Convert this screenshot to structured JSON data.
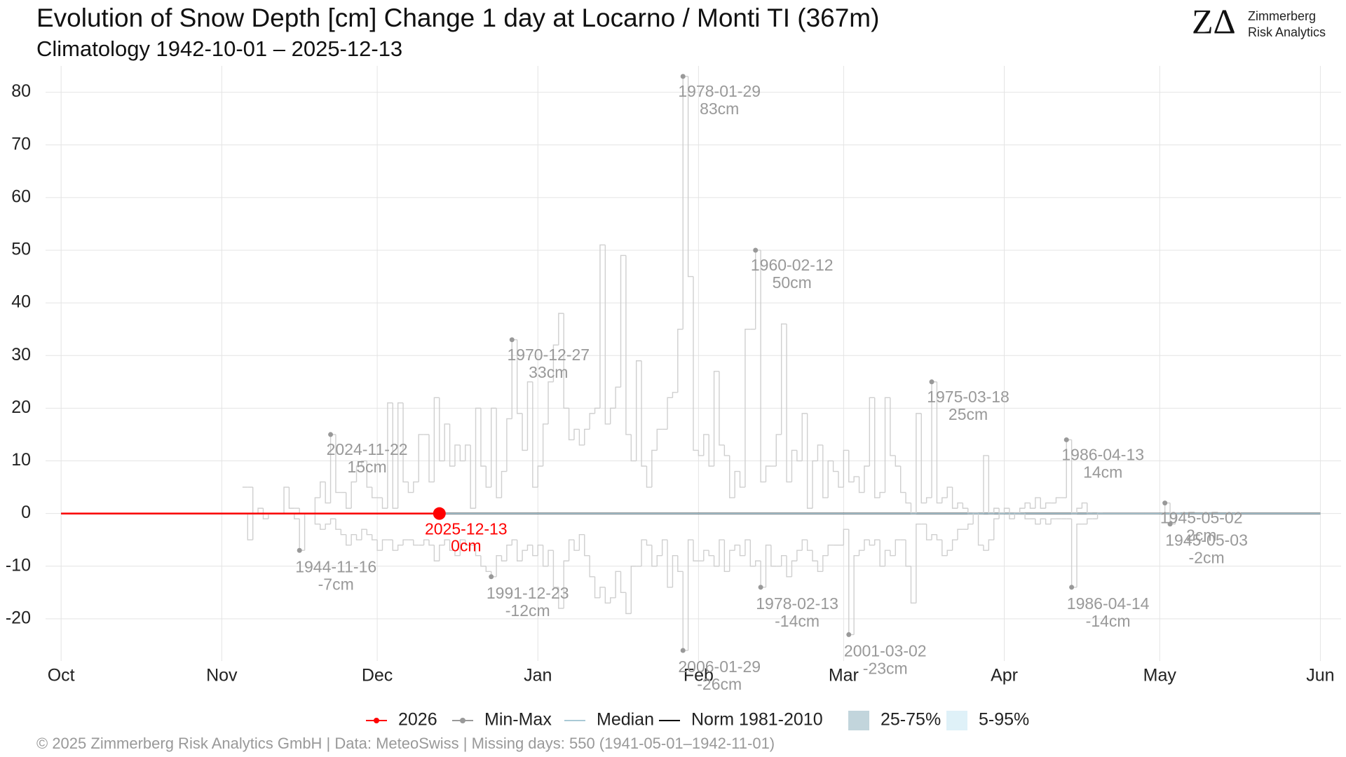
{
  "chart_data": {
    "type": "step",
    "title": "Evolution of Snow Depth [cm] Change 1 day at Locarno / Monti  TI (367m)",
    "subtitle": "Climatology 1942-10-01 – 2025-12-13",
    "xlim": [
      -3,
      247
    ],
    "xticks": [
      {
        "value": 0,
        "label": "Oct"
      },
      {
        "value": 31,
        "label": "Nov"
      },
      {
        "value": 61,
        "label": "Dec"
      },
      {
        "value": 92,
        "label": "Jan"
      },
      {
        "value": 123,
        "label": "Feb"
      },
      {
        "value": 151,
        "label": "Mar"
      },
      {
        "value": 182,
        "label": "Apr"
      },
      {
        "value": 212,
        "label": "May"
      },
      {
        "value": 243,
        "label": "Jun"
      }
    ],
    "ylim": [
      -28,
      85
    ],
    "yticks": [
      -20,
      -10,
      0,
      10,
      20,
      30,
      40,
      50,
      60,
      70,
      80
    ],
    "grid": true,
    "series": [
      {
        "name": "2026",
        "color": "#ff0000",
        "x": [
          0,
          73
        ],
        "values": [
          0,
          0
        ]
      },
      {
        "name": "Min-Max",
        "color": "#999999",
        "x": [
          35,
          36,
          37,
          38,
          39,
          40,
          41,
          42,
          43,
          44,
          45,
          46,
          47,
          48,
          49,
          50,
          51,
          52,
          53,
          54,
          55,
          56,
          57,
          58,
          59,
          60,
          61,
          62,
          63,
          64,
          65,
          66,
          67,
          68,
          69,
          70,
          71,
          72,
          73,
          74,
          75,
          76,
          77,
          78,
          79,
          80,
          81,
          82,
          83,
          84,
          85,
          86,
          87,
          88,
          89,
          90,
          91,
          92,
          93,
          94,
          95,
          96,
          97,
          98,
          99,
          100,
          101,
          102,
          103,
          104,
          105,
          106,
          107,
          108,
          109,
          110,
          111,
          112,
          113,
          114,
          115,
          116,
          117,
          118,
          119,
          120,
          121,
          122,
          123,
          124,
          125,
          126,
          127,
          128,
          129,
          130,
          131,
          132,
          133,
          134,
          135,
          136,
          137,
          138,
          139,
          140,
          141,
          142,
          143,
          144,
          145,
          146,
          147,
          148,
          149,
          150,
          151,
          152,
          153,
          154,
          155,
          156,
          157,
          158,
          159,
          160,
          161,
          162,
          163,
          164,
          165,
          166,
          167,
          168,
          169,
          170,
          171,
          172,
          173,
          174,
          175,
          176,
          177,
          178,
          179,
          180,
          181,
          182,
          183,
          184,
          185,
          186,
          187,
          188,
          189,
          190,
          191,
          192,
          193,
          194,
          195,
          196,
          197,
          198,
          199,
          200,
          201,
          202,
          203,
          204,
          205,
          206,
          207,
          208,
          209,
          210,
          211,
          212,
          213,
          214,
          215
        ],
        "values": [
          5,
          5,
          0,
          1,
          0,
          0,
          0,
          0,
          5,
          1,
          1,
          0,
          0,
          0,
          3,
          6,
          2,
          15,
          4,
          4,
          1,
          6,
          9,
          10,
          5,
          3,
          3,
          1,
          21,
          1,
          21,
          6,
          4,
          6,
          15,
          15,
          6,
          22,
          10,
          17,
          9,
          13,
          10,
          13,
          1,
          20,
          9,
          5,
          20,
          3,
          8,
          18,
          33,
          19,
          12,
          25,
          5,
          9,
          17,
          25,
          32,
          38,
          20,
          14,
          16,
          13,
          16,
          19,
          20,
          51,
          17,
          20,
          24,
          49,
          15,
          10,
          29,
          9,
          5,
          12,
          16,
          16,
          22,
          23,
          35,
          83,
          45,
          12,
          11,
          15,
          9,
          27,
          13,
          11,
          3,
          8,
          5,
          35,
          35,
          50,
          6,
          9,
          9,
          15,
          36,
          6,
          12,
          10,
          19,
          1,
          10,
          13,
          3,
          10,
          8,
          5,
          12,
          6,
          7,
          4,
          9,
          22,
          3,
          4,
          22,
          11,
          9,
          4,
          2,
          0,
          19,
          2,
          3,
          25,
          2,
          3,
          5,
          1,
          2,
          1,
          0,
          0,
          0,
          11,
          0,
          1,
          0,
          1,
          0,
          0,
          1,
          2,
          1,
          3,
          1,
          2,
          2,
          3,
          3,
          14,
          0,
          1,
          2,
          0,
          0,
          0,
          0,
          0,
          0,
          0,
          0,
          0,
          0,
          0,
          0,
          0,
          0,
          0,
          2,
          0,
          0
        ],
        "min_values": [
          0,
          -5,
          0,
          0,
          -1,
          0,
          0,
          0,
          0,
          0,
          -1,
          -7,
          0,
          0,
          -2,
          -3,
          -2,
          -1,
          -3,
          -4,
          -6,
          -4,
          -5,
          -3,
          -4,
          -5,
          -7,
          -5,
          -5,
          -7,
          -6,
          -5,
          -5,
          -6,
          -6,
          -5,
          -6,
          -9,
          -6,
          -5,
          -7,
          -8,
          -5,
          -6,
          -6,
          -8,
          -10,
          -11,
          -12,
          -8,
          -9,
          -6,
          -5,
          -9,
          -7,
          -6,
          -8,
          -6,
          -10,
          -7,
          -14,
          -18,
          -9,
          -5,
          -7,
          -4,
          -8,
          -12,
          -16,
          -14,
          -17,
          -16,
          -11,
          -15,
          -19,
          -10,
          -10,
          -5,
          -6,
          -10,
          -8,
          -5,
          -14,
          -8,
          -11,
          -26,
          -5,
          -9,
          -9,
          -7,
          -8,
          -10,
          -5,
          -11,
          -7,
          -6,
          -8,
          -5,
          -10,
          -9,
          -14,
          -6,
          -10,
          -10,
          -8,
          -12,
          -9,
          -7,
          -5,
          -7,
          -9,
          -11,
          -8,
          -6,
          -6,
          -6,
          -3,
          -23,
          -8,
          -7,
          -5,
          -6,
          -5,
          -10,
          -7,
          -8,
          -5,
          -5,
          -10,
          -17,
          -2,
          -2,
          -5,
          -4,
          -5,
          -8,
          -7,
          -5,
          -3,
          -3,
          -2,
          0,
          -6,
          -7,
          -5,
          -1,
          0,
          0,
          -1,
          0,
          0,
          -1,
          -1,
          -2,
          -1,
          -2,
          -1,
          -1,
          -1,
          -1,
          -14,
          -2,
          -2,
          -1,
          -1,
          0,
          0,
          0,
          0,
          0,
          0,
          0,
          0,
          0,
          0,
          0,
          0,
          0,
          0,
          -2,
          0
        ]
      },
      {
        "name": "Median",
        "color": "#a9c9d6",
        "x": [
          0,
          243
        ],
        "values": [
          0,
          0
        ]
      },
      {
        "name": "Norm 1981-2010",
        "color": "#000000",
        "x": [
          0,
          243
        ],
        "values": [
          0,
          0
        ]
      },
      {
        "name": "25-75%",
        "color": "#c2d5dc"
      },
      {
        "name": "5-95%",
        "color": "#dff1f8"
      }
    ],
    "annotations": [
      {
        "x": 52,
        "y": 15,
        "date": "2024-11-22",
        "label": "15cm"
      },
      {
        "x": 46,
        "y": -7,
        "date": "1944-11-16",
        "label": "-7cm"
      },
      {
        "x": 87,
        "y": 33,
        "date": "1970-12-27",
        "label": "33cm"
      },
      {
        "x": 83,
        "y": -12,
        "date": "1991-12-23",
        "label": "-12cm"
      },
      {
        "x": 120,
        "y": 83,
        "date": "1978-01-29",
        "label": "83cm"
      },
      {
        "x": 120,
        "y": -26,
        "date": "2006-01-29",
        "label": "-26cm"
      },
      {
        "x": 134,
        "y": 50,
        "date": "1960-02-12",
        "label": "50cm"
      },
      {
        "x": 135,
        "y": -14,
        "date": "1978-02-13",
        "label": "-14cm"
      },
      {
        "x": 152,
        "y": -23,
        "date": "2001-03-02",
        "label": "-23cm"
      },
      {
        "x": 168,
        "y": 25,
        "date": "1975-03-18",
        "label": "25cm"
      },
      {
        "x": 194,
        "y": 14,
        "date": "1986-04-13",
        "label": "14cm"
      },
      {
        "x": 195,
        "y": -14,
        "date": "1986-04-14",
        "label": "-14cm"
      },
      {
        "x": 213,
        "y": 2,
        "date": "1945-05-02",
        "label": "2cm"
      },
      {
        "x": 214,
        "y": -2,
        "date": "1945-05-03",
        "label": "-2cm"
      }
    ],
    "current": {
      "x": 73,
      "y": 0,
      "date": "2025-12-13",
      "label": "0cm",
      "color": "#ff0000"
    },
    "logo": {
      "mark": "ZΔ",
      "line1": "Zimmerberg",
      "line2": "Risk Analytics"
    },
    "caption": "©  2025 Zimmerberg Risk Analytics GmbH | Data: MeteoSwiss | Missing days: 550 (1941-05-01–1942-11-01)"
  }
}
